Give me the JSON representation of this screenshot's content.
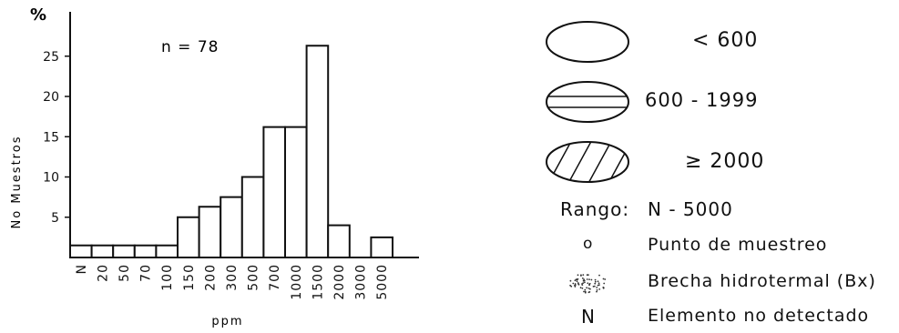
{
  "chart_data": {
    "type": "bar",
    "ylabel_unit": "%",
    "ylabel": "No Muestros",
    "xlabel": "ppm",
    "annotation": "n = 78",
    "categories": [
      "N",
      "20",
      "50",
      "70",
      "100",
      "150",
      "200",
      "300",
      "500",
      "700",
      "1000",
      "1500",
      "2000",
      "3000",
      "5000"
    ],
    "values": [
      1.5,
      1.5,
      1.5,
      1.5,
      1.5,
      5,
      6.3,
      7.5,
      10,
      16.2,
      16.2,
      26.3,
      4,
      0,
      2.5
    ],
    "y_ticks": [
      5,
      10,
      15,
      20,
      25
    ],
    "ylim": [
      0,
      28
    ],
    "grid": false
  },
  "legend": {
    "low": "< 600",
    "mid": "600 - 1999",
    "high": "≥ 2000",
    "rango_label": "Rango:",
    "rango_value": "N - 5000",
    "punto_symbol": "o",
    "punto_label": "Punto de muestreo",
    "brecha_label": "Brecha hidrotermal (Bx)",
    "n_symbol": "N",
    "n_label": "Elemento no detectado"
  }
}
